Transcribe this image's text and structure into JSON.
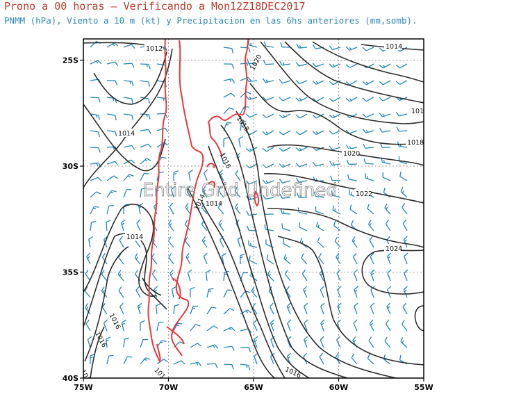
{
  "title": "Prono a 00 horas — Verificando a Mon12Z18DEC2017",
  "subtitle": "PNMM (hPa), Viento a 10 m (kt) y Precipitacion en las 6hs anteriores (mm,somb).",
  "overlay_text": "Entire Grid Undefined",
  "map": {
    "lon_range": [
      -75,
      -55
    ],
    "lat_range": [
      -40,
      -24
    ],
    "x_ticks": [
      "75W",
      "70W",
      "65W",
      "60W",
      "55W"
    ],
    "y_ticks": [
      "25S",
      "30S",
      "35S",
      "40S"
    ],
    "grid_lons": [
      -70,
      -65,
      -60
    ],
    "grid_lats": [
      -25,
      -30,
      -35
    ],
    "isobar_labels": [
      "1012",
      "1014",
      "1014",
      "1014",
      "1014",
      "1016",
      "1016",
      "1016",
      "1016",
      "1018",
      "1018",
      "1018",
      "1020",
      "1020",
      "1022",
      "1024",
      "101",
      "101",
      "1014"
    ],
    "colors": {
      "isobar": "#2b2b2b",
      "coast": "#e8383d",
      "wind": "#1f86b6",
      "grid": "#9a9a9a"
    }
  }
}
